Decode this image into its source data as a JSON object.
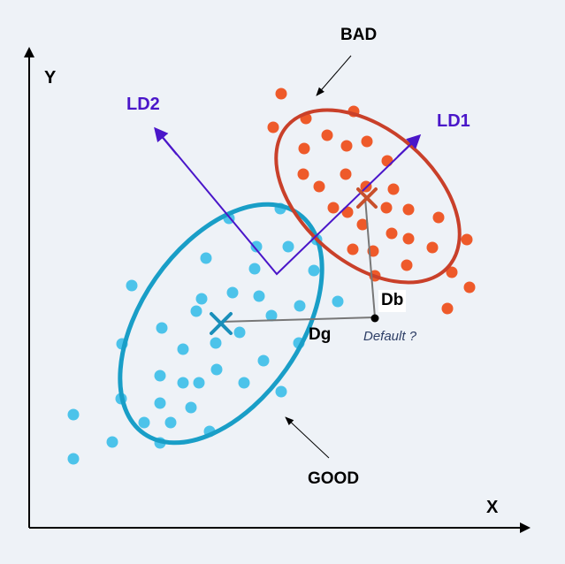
{
  "labels": {
    "y_axis": "Y",
    "x_axis": "X",
    "ld1": "LD1",
    "ld2": "LD2",
    "bad": "BAD",
    "good": "GOOD",
    "db": "Db",
    "dg": "Dg",
    "default": "Default ?"
  },
  "colors": {
    "axis": "#000000",
    "ld_arrows": "#4a16c9",
    "ld_label": "#4a16c9",
    "bad_points": "#ee5a2a",
    "bad_ellipse": "#c9402a",
    "bad_centroid": "#c8502c",
    "good_points": "#4cc3ea",
    "good_ellipse": "#199ec7",
    "good_centroid": "#1a8fba",
    "distance_lines": "#777777",
    "default_text": "#2d3e66",
    "background": "#eef2f7"
  },
  "icons": {
    "bad_centroid": "x-mark-icon",
    "good_centroid": "x-mark-icon",
    "default_point": "dot-icon"
  }
}
